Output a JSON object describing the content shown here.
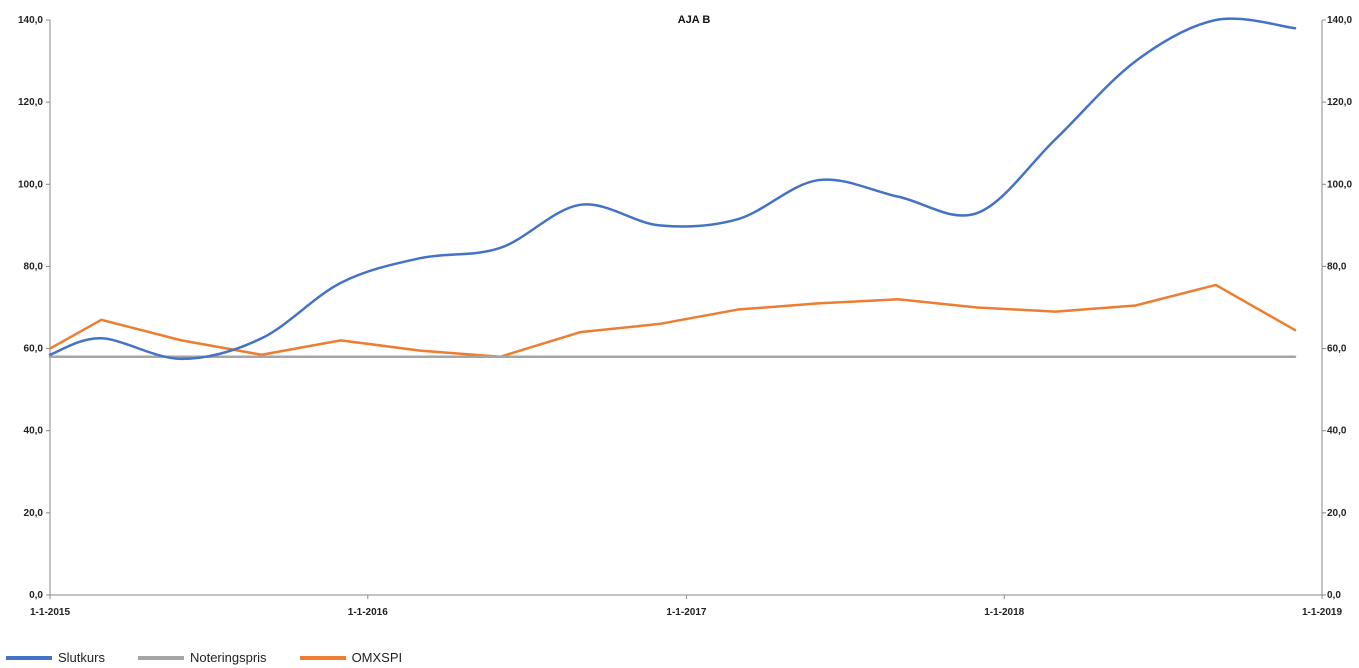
{
  "chart_data": {
    "type": "line",
    "title": "AJA B",
    "xlabel": "",
    "ylabel": "",
    "x_ticks": [
      "1-1-2015",
      "1-1-2016",
      "1-1-2017",
      "1-1-2018",
      "1-1-2019"
    ],
    "y_ticks": [
      "0,0",
      "20,0",
      "40,0",
      "60,0",
      "80,0",
      "100,0",
      "120,0",
      "140,0"
    ],
    "xlim": [
      "2015-01-01",
      "2019-01-01"
    ],
    "ylim": [
      0,
      140
    ],
    "secondary_y_axis": true,
    "grid": false,
    "legend_position": "bottom-left",
    "series": [
      {
        "name": "Slutkurs",
        "color": "#4472C4",
        "smooth": true,
        "points": [
          [
            "2015-01-01",
            58.5
          ],
          [
            "2015-03-01",
            62.5
          ],
          [
            "2015-06-01",
            57.5
          ],
          [
            "2015-09-01",
            62.5
          ],
          [
            "2015-12-01",
            76
          ],
          [
            "2016-03-01",
            82
          ],
          [
            "2016-06-01",
            84.5
          ],
          [
            "2016-09-01",
            95
          ],
          [
            "2016-12-01",
            90
          ],
          [
            "2017-03-01",
            91.5
          ],
          [
            "2017-06-01",
            101
          ],
          [
            "2017-09-01",
            97
          ],
          [
            "2017-12-01",
            93
          ],
          [
            "2018-03-01",
            111
          ],
          [
            "2018-06-01",
            130
          ],
          [
            "2018-09-01",
            140
          ],
          [
            "2018-12-01",
            138
          ]
        ]
      },
      {
        "name": "Noteringspris",
        "color": "#A5A5A5",
        "smooth": false,
        "points": [
          [
            "2015-01-01",
            58
          ],
          [
            "2018-12-01",
            58
          ]
        ]
      },
      {
        "name": "OMXSPI",
        "color": "#ED7D31",
        "smooth": false,
        "points": [
          [
            "2015-01-01",
            60
          ],
          [
            "2015-03-01",
            67
          ],
          [
            "2015-06-01",
            62
          ],
          [
            "2015-09-01",
            58.5
          ],
          [
            "2015-12-01",
            62
          ],
          [
            "2016-03-01",
            59.5
          ],
          [
            "2016-06-01",
            58
          ],
          [
            "2016-09-01",
            64
          ],
          [
            "2016-12-01",
            66
          ],
          [
            "2017-03-01",
            69.5
          ],
          [
            "2017-06-01",
            71
          ],
          [
            "2017-09-01",
            72
          ],
          [
            "2017-12-01",
            70
          ],
          [
            "2018-03-01",
            69
          ],
          [
            "2018-06-01",
            70.5
          ],
          [
            "2018-09-01",
            75.5
          ],
          [
            "2018-12-01",
            64.5
          ]
        ]
      }
    ]
  }
}
